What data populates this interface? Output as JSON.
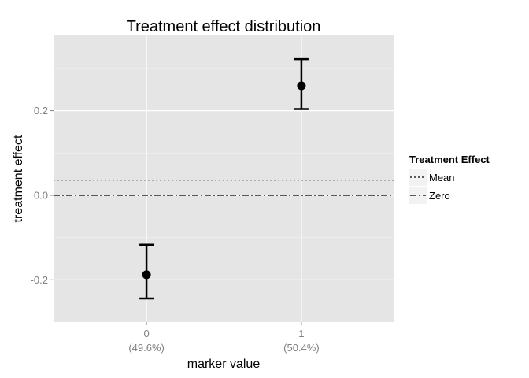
{
  "chart_data": {
    "type": "scatter",
    "title": "Treatment effect distribution",
    "xlabel": "marker value",
    "ylabel": "treatment effect",
    "categories": [
      "0",
      "1"
    ],
    "category_sublabels": [
      "(49.6%)",
      "(50.4%)"
    ],
    "yticks": [
      -0.2,
      0.0,
      0.2
    ],
    "ytick_labels": [
      "-0.2",
      "0.0",
      "0.2"
    ],
    "ylim": [
      -0.3,
      0.38
    ],
    "grid": true,
    "points": [
      {
        "x": "0",
        "y": -0.188,
        "lower": -0.244,
        "upper": -0.117
      },
      {
        "x": "1",
        "y": 0.259,
        "lower": 0.204,
        "upper": 0.322
      }
    ],
    "reference_lines": [
      {
        "name": "Mean",
        "y": 0.036,
        "style": "dotted"
      },
      {
        "name": "Zero",
        "y": 0.0,
        "style": "dashdot"
      }
    ],
    "legend": {
      "title": "Treatment Effect",
      "placement": "right",
      "entries": [
        "Mean",
        "Zero"
      ]
    },
    "colors": {
      "panel": "#e5e5e5",
      "grid": "#ffffff",
      "marks": "#000000"
    }
  }
}
